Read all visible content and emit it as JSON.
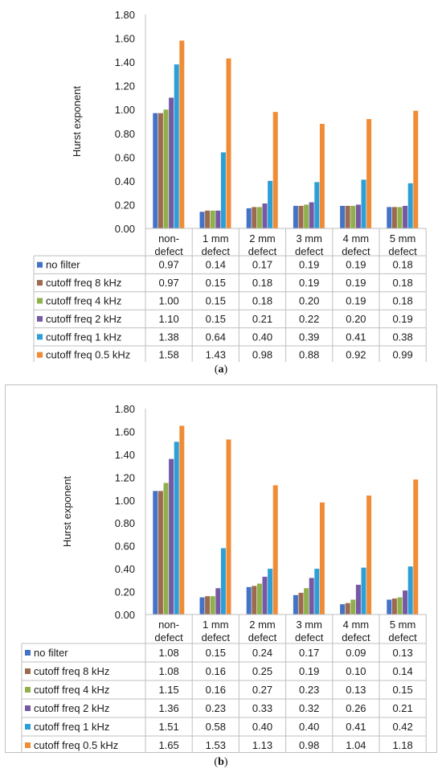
{
  "chart_data": [
    {
      "type": "bar",
      "panel": "(a)",
      "ylabel": "Hurst exponent",
      "ylim": [
        0,
        1.8
      ],
      "yticks": [
        "0.00",
        "0.20",
        "0.40",
        "0.60",
        "0.80",
        "1.00",
        "1.20",
        "1.40",
        "1.60",
        "1.80"
      ],
      "categories": [
        [
          "non-",
          "defect"
        ],
        [
          "1 mm",
          "defect"
        ],
        [
          "2 mm",
          "defect"
        ],
        [
          "3 mm",
          "defect"
        ],
        [
          "4 mm",
          "defect"
        ],
        [
          "5 mm",
          "defect"
        ]
      ],
      "series": [
        {
          "name": "no filter",
          "color": "#4472c4",
          "values": [
            0.97,
            0.14,
            0.17,
            0.19,
            0.19,
            0.18
          ]
        },
        {
          "name": "cutoff freq 8 kHz",
          "color": "#9e6a4f",
          "values": [
            0.97,
            0.15,
            0.18,
            0.19,
            0.19,
            0.18
          ]
        },
        {
          "name": "cutoff freq 4 kHz",
          "color": "#8fb04a",
          "values": [
            1.0,
            0.15,
            0.18,
            0.2,
            0.19,
            0.18
          ]
        },
        {
          "name": "cutoff freq 2 kHz",
          "color": "#7559a3",
          "values": [
            1.1,
            0.15,
            0.21,
            0.22,
            0.2,
            0.19
          ]
        },
        {
          "name": "cutoff freq 1 kHz",
          "color": "#2e9ed6",
          "values": [
            1.38,
            0.64,
            0.4,
            0.39,
            0.41,
            0.38
          ]
        },
        {
          "name": "cutoff freq 0.5 kHz",
          "color": "#f08c36",
          "values": [
            1.58,
            1.43,
            0.98,
            0.88,
            0.92,
            0.99
          ]
        }
      ],
      "table_values": [
        [
          "0.97",
          "0.14",
          "0.17",
          "0.19",
          "0.19",
          "0.18"
        ],
        [
          "0.97",
          "0.15",
          "0.18",
          "0.19",
          "0.19",
          "0.18"
        ],
        [
          "1.00",
          "0.15",
          "0.18",
          "0.20",
          "0.19",
          "0.18"
        ],
        [
          "1.10",
          "0.15",
          "0.21",
          "0.22",
          "0.20",
          "0.19"
        ],
        [
          "1.38",
          "0.64",
          "0.40",
          "0.39",
          "0.41",
          "0.38"
        ],
        [
          "1.58",
          "1.43",
          "0.98",
          "0.88",
          "0.92",
          "0.99"
        ]
      ],
      "grid": false,
      "legend": "data-table-left"
    },
    {
      "type": "bar",
      "panel": "(b)",
      "ylabel": "Hurst exponent",
      "ylim": [
        0,
        1.8
      ],
      "yticks": [
        "0.00",
        "0.20",
        "0.40",
        "0.60",
        "0.80",
        "1.00",
        "1.20",
        "1.40",
        "1.60",
        "1.80"
      ],
      "categories": [
        [
          "non-",
          "defect"
        ],
        [
          "1 mm",
          "defect"
        ],
        [
          "2 mm",
          "defect"
        ],
        [
          "3 mm",
          "defect"
        ],
        [
          "4 mm",
          "defect"
        ],
        [
          "5 mm",
          "defect"
        ]
      ],
      "series": [
        {
          "name": "no filter",
          "color": "#4472c4",
          "values": [
            1.08,
            0.15,
            0.24,
            0.17,
            0.09,
            0.13
          ]
        },
        {
          "name": "cutoff freq 8 kHz",
          "color": "#9e6a4f",
          "values": [
            1.08,
            0.16,
            0.25,
            0.19,
            0.1,
            0.14
          ]
        },
        {
          "name": "cutoff freq 4 kHz",
          "color": "#8fb04a",
          "values": [
            1.15,
            0.16,
            0.27,
            0.23,
            0.13,
            0.15
          ]
        },
        {
          "name": "cutoff freq 2 kHz",
          "color": "#7559a3",
          "values": [
            1.36,
            0.23,
            0.33,
            0.32,
            0.26,
            0.21
          ]
        },
        {
          "name": "cutoff freq 1 kHz",
          "color": "#2e9ed6",
          "values": [
            1.51,
            0.58,
            0.4,
            0.4,
            0.41,
            0.42
          ]
        },
        {
          "name": "cutoff freq 0.5 kHz",
          "color": "#f08c36",
          "values": [
            1.65,
            1.53,
            1.13,
            0.98,
            1.04,
            1.18
          ]
        }
      ],
      "table_values": [
        [
          "1.08",
          "0.15",
          "0.24",
          "0.17",
          "0.09",
          "0.13"
        ],
        [
          "1.08",
          "0.16",
          "0.25",
          "0.19",
          "0.10",
          "0.14"
        ],
        [
          "1.15",
          "0.16",
          "0.27",
          "0.23",
          "0.13",
          "0.15"
        ],
        [
          "1.36",
          "0.23",
          "0.33",
          "0.32",
          "0.26",
          "0.21"
        ],
        [
          "1.51",
          "0.58",
          "0.40",
          "0.40",
          "0.41",
          "0.42"
        ],
        [
          "1.65",
          "1.53",
          "1.13",
          "0.98",
          "1.04",
          "1.18"
        ]
      ],
      "grid": false,
      "legend": "data-table-left"
    }
  ],
  "captions": {
    "a": "a",
    "b": "b"
  }
}
